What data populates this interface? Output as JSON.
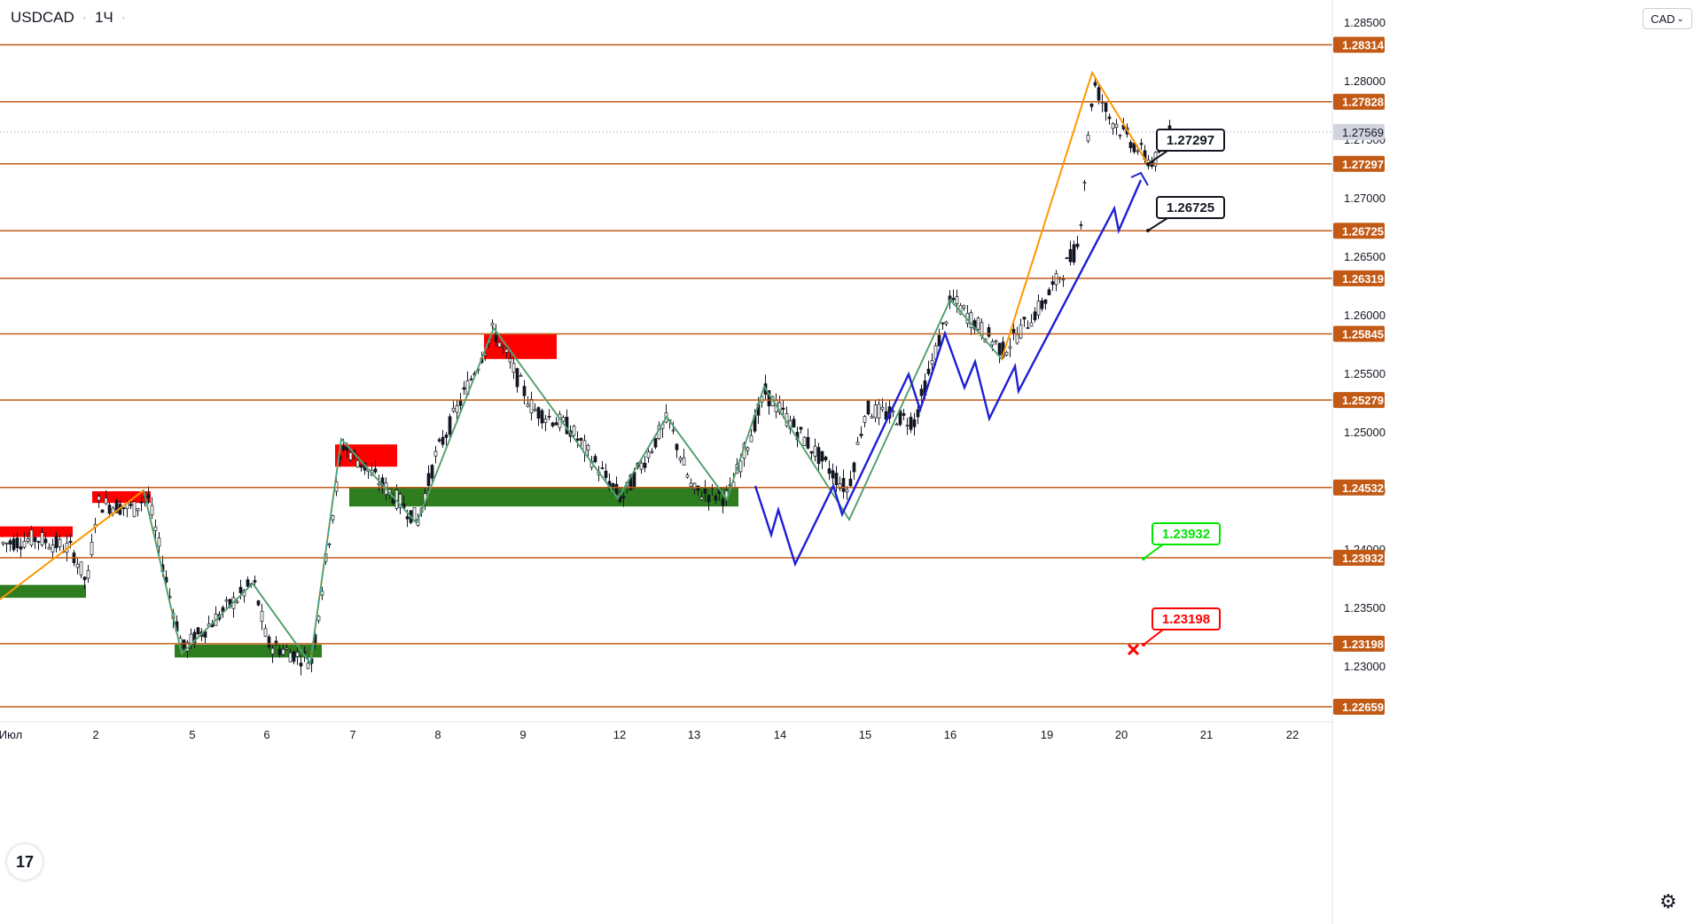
{
  "header": {
    "symbol": "USDCAD",
    "interval": "1Ч",
    "menu_glyph": "·"
  },
  "currency_button": {
    "label": "CAD",
    "caret": "⌄"
  },
  "colors": {
    "level_line": "#c25a16",
    "level_label_bg": "#c25a16",
    "zigzag_orange": "#ff9800",
    "zigzag_teal": "#26a69a",
    "projection_blue": "#1c1fd6",
    "supply_zone": "#ff0000",
    "demand_zone": "#2e7d1e",
    "candle_body": "#131722",
    "current_price_bg": "#d1d4dc",
    "target_green": "#00e600",
    "stop_red": "#ff0000"
  },
  "chart_data": {
    "type": "candlestick",
    "symbol": "USDCAD",
    "interval": "1Ч",
    "ylim": [
      1.2265,
      1.2842
    ],
    "y_ticks": [
      "1.23000",
      "1.23500",
      "1.24000",
      "1.24500",
      "1.25000",
      "1.25500",
      "1.26000",
      "1.26500",
      "1.27000",
      "1.27500",
      "1.28000",
      "1.28500"
    ],
    "x_ticks": [
      "Июл",
      "2",
      "5",
      "6",
      "7",
      "8",
      "9",
      "12",
      "13",
      "14",
      "15",
      "16",
      "19",
      "20",
      "21",
      "22"
    ],
    "levels": [
      "1.28314",
      "1.27828",
      "1.27297",
      "1.26725",
      "1.26319",
      "1.25845",
      "1.25279",
      "1.24532",
      "1.23932",
      "1.23198",
      "1.22659"
    ],
    "current_price": "1.27569",
    "callouts": [
      {
        "text": "1.27297",
        "style": "black",
        "price": 1.27297
      },
      {
        "text": "1.26725",
        "style": "black",
        "price": 1.26725
      },
      {
        "text": "1.23932",
        "style": "green",
        "price": 1.23932
      },
      {
        "text": "1.23198",
        "style": "red",
        "price": 1.23198
      }
    ],
    "supply_zones": [
      {
        "from_date": "Июл",
        "price_high": 1.242,
        "price_low": 1.2411
      },
      {
        "from_date": "2",
        "price_high": 1.245,
        "price_low": 1.244
      },
      {
        "from_date": "7",
        "price_high": 1.249,
        "price_low": 1.2471
      },
      {
        "from_date": "8",
        "price_high": 1.2584,
        "price_low": 1.2563
      }
    ],
    "demand_zones": [
      {
        "from_date": "Июл",
        "price_high": 1.237,
        "price_low": 1.2359
      },
      {
        "from_date": "5",
        "price_high": 1.2319,
        "price_low": 1.2308
      },
      {
        "from_date": "7",
        "price_high": 1.2453,
        "price_low": 1.2437
      }
    ],
    "orange_zigzag": [
      {
        "date": "Июл",
        "price": 1.2367
      },
      {
        "date": "2",
        "price": 1.2448
      },
      {
        "date": "5",
        "price": 1.231
      },
      {
        "date": "6",
        "price": 1.2373
      },
      {
        "date": "6",
        "price": 1.2305
      },
      {
        "date": "7",
        "price": 1.249
      },
      {
        "date": "8",
        "price": 1.2425
      },
      {
        "date": "9",
        "price": 1.2588
      },
      {
        "date": "12",
        "price": 1.2443
      },
      {
        "date": "13",
        "price": 1.2513
      },
      {
        "date": "13",
        "price": 1.2442
      },
      {
        "date": "14",
        "price": 1.2534
      },
      {
        "date": "15",
        "price": 1.2427
      },
      {
        "date": "16",
        "price": 1.2614
      },
      {
        "date": "16",
        "price": 1.257
      },
      {
        "date": "19",
        "price": 1.2809
      },
      {
        "date": "20",
        "price": 1.2735
      }
    ],
    "teal_zigzag": [
      {
        "date": "2",
        "price": 1.2448
      },
      {
        "date": "5",
        "price": 1.231
      },
      {
        "date": "6",
        "price": 1.2373
      },
      {
        "date": "6",
        "price": 1.2305
      },
      {
        "date": "7",
        "price": 1.249
      },
      {
        "date": "8",
        "price": 1.2425
      },
      {
        "date": "9",
        "price": 1.2588
      },
      {
        "date": "12",
        "price": 1.2443
      },
      {
        "date": "13",
        "price": 1.2513
      },
      {
        "date": "13",
        "price": 1.2442
      },
      {
        "date": "14",
        "price": 1.2534
      },
      {
        "date": "15",
        "price": 1.2427
      },
      {
        "date": "16",
        "price": 1.2614
      },
      {
        "date": "16",
        "price": 1.257
      }
    ],
    "blue_projection": [
      {
        "date": "14",
        "price": 1.2453
      },
      {
        "date": "14",
        "price": 1.2415
      },
      {
        "date": "14",
        "price": 1.243
      },
      {
        "date": "14",
        "price": 1.239
      },
      {
        "date": "15",
        "price": 1.2453
      },
      {
        "date": "15",
        "price": 1.243
      },
      {
        "date": "15",
        "price": 1.255
      },
      {
        "date": "15",
        "price": 1.253
      },
      {
        "date": "16",
        "price": 1.259
      },
      {
        "date": "16",
        "price": 1.254
      },
      {
        "date": "16",
        "price": 1.256
      },
      {
        "date": "16",
        "price": 1.2513
      },
      {
        "date": "19",
        "price": 1.256
      },
      {
        "date": "19",
        "price": 1.2537
      },
      {
        "date": "20",
        "price": 1.2695
      },
      {
        "date": "20",
        "price": 1.2675
      },
      {
        "date": "20",
        "price": 1.272
      }
    ]
  },
  "logo_text": "17",
  "settings_glyph": "⚙"
}
